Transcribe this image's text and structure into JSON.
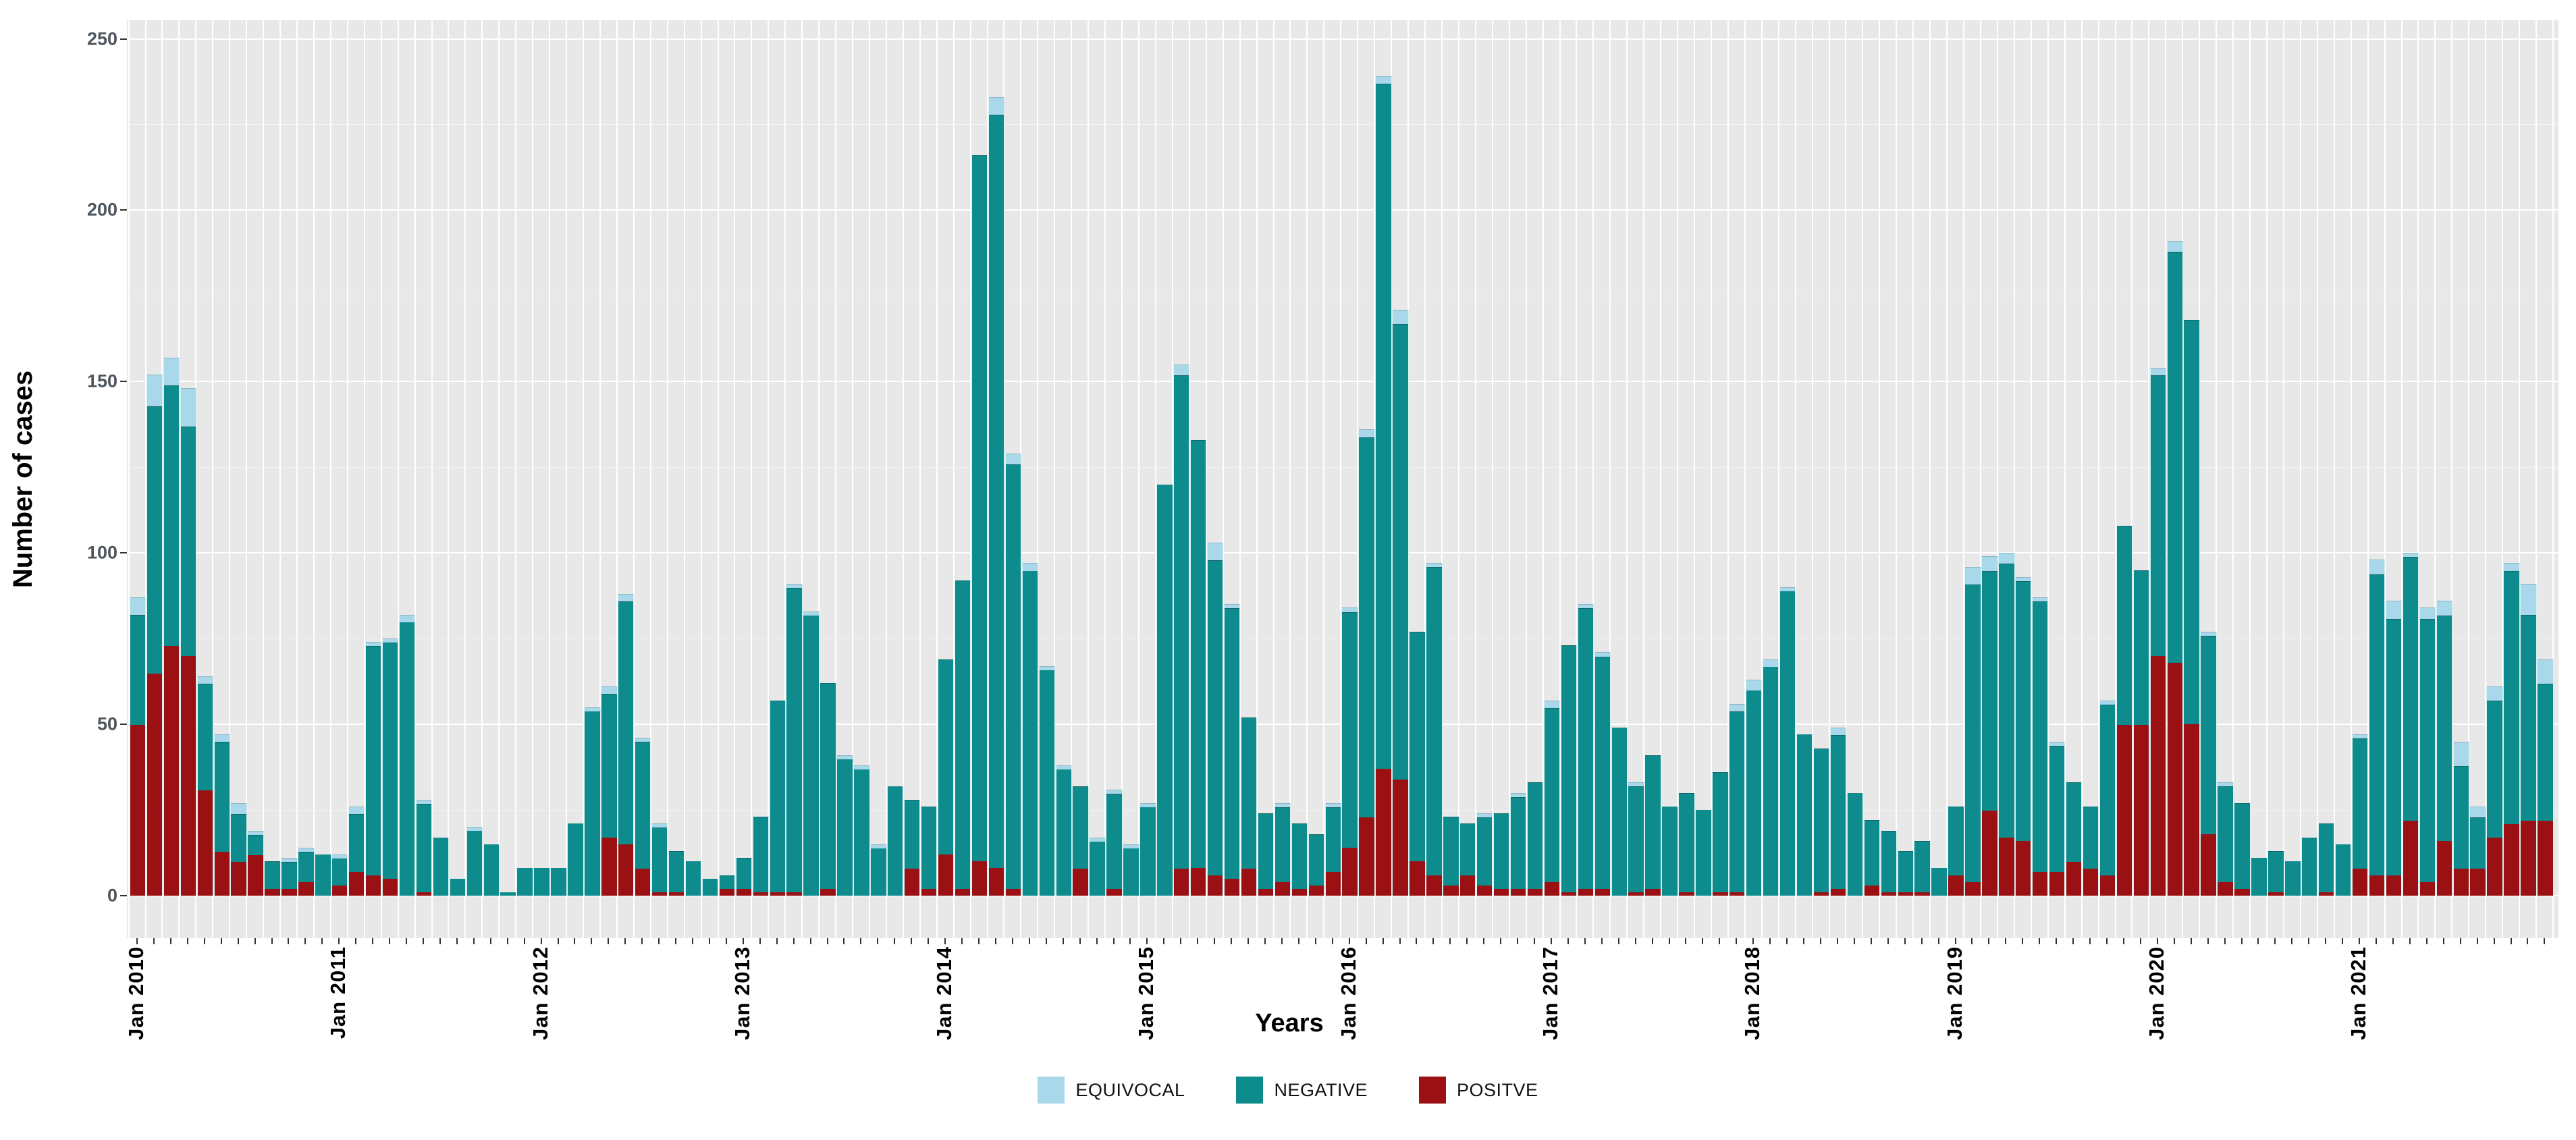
{
  "y_axis": {
    "title": "Number of cases",
    "ticks": [
      0,
      50,
      100,
      150,
      200,
      250
    ]
  },
  "x_axis": {
    "title": "Years",
    "tick_labels": [
      "Jan 2010",
      "Jan 2011",
      "Jan 2012",
      "Jan 2013",
      "Jan 2014",
      "Jan 2015",
      "Jan 2016",
      "Jan 2017",
      "Jan 2018",
      "Jan 2019",
      "Jan 2020",
      "Jan 2021"
    ]
  },
  "legend": {
    "items": [
      {
        "label": "EQUIVOCAL",
        "color": "#a9d8ea"
      },
      {
        "label": "NEGATIVE",
        "color": "#0e8c8d"
      },
      {
        "label": "POSITVE",
        "color": "#9a1013"
      }
    ]
  },
  "chart_data": {
    "type": "bar",
    "stacked": true,
    "title": "",
    "xlabel": "Years",
    "ylabel": "Number of cases",
    "ylim": [
      0,
      250
    ],
    "grid": true,
    "legend_position": "bottom",
    "panel_background": "#e8e8e8",
    "gridline_color": "#ffffff",
    "categories": [
      "Jan 2010",
      "Feb 2010",
      "Mar 2010",
      "Apr 2010",
      "May 2010",
      "Jun 2010",
      "Jul 2010",
      "Aug 2010",
      "Sep 2010",
      "Oct 2010",
      "Nov 2010",
      "Dec 2010",
      "Jan 2011",
      "Feb 2011",
      "Mar 2011",
      "Apr 2011",
      "May 2011",
      "Jun 2011",
      "Jul 2011",
      "Aug 2011",
      "Sep 2011",
      "Oct 2011",
      "Nov 2011",
      "Dec 2011",
      "Jan 2012",
      "Feb 2012",
      "Mar 2012",
      "Apr 2012",
      "May 2012",
      "Jun 2012",
      "Jul 2012",
      "Aug 2012",
      "Sep 2012",
      "Oct 2012",
      "Nov 2012",
      "Dec 2012",
      "Jan 2013",
      "Feb 2013",
      "Mar 2013",
      "Apr 2013",
      "May 2013",
      "Jun 2013",
      "Jul 2013",
      "Aug 2013",
      "Sep 2013",
      "Oct 2013",
      "Nov 2013",
      "Dec 2013",
      "Jan 2014",
      "Feb 2014",
      "Mar 2014",
      "Apr 2014",
      "May 2014",
      "Jun 2014",
      "Jul 2014",
      "Aug 2014",
      "Sep 2014",
      "Oct 2014",
      "Nov 2014",
      "Dec 2014",
      "Jan 2015",
      "Feb 2015",
      "Mar 2015",
      "Apr 2015",
      "May 2015",
      "Jun 2015",
      "Jul 2015",
      "Aug 2015",
      "Sep 2015",
      "Oct 2015",
      "Nov 2015",
      "Dec 2015",
      "Jan 2016",
      "Feb 2016",
      "Mar 2016",
      "Apr 2016",
      "May 2016",
      "Jun 2016",
      "Jul 2016",
      "Aug 2016",
      "Sep 2016",
      "Oct 2016",
      "Nov 2016",
      "Dec 2016",
      "Jan 2017",
      "Feb 2017",
      "Mar 2017",
      "Apr 2017",
      "May 2017",
      "Jun 2017",
      "Jul 2017",
      "Aug 2017",
      "Sep 2017",
      "Oct 2017",
      "Nov 2017",
      "Dec 2017",
      "Jan 2018",
      "Feb 2018",
      "Mar 2018",
      "Apr 2018",
      "May 2018",
      "Jun 2018",
      "Jul 2018",
      "Aug 2018",
      "Sep 2018",
      "Oct 2018",
      "Nov 2018",
      "Dec 2018",
      "Jan 2019",
      "Feb 2019",
      "Mar 2019",
      "Apr 2019",
      "May 2019",
      "Jun 2019",
      "Jul 2019",
      "Aug 2019",
      "Sep 2019",
      "Oct 2019",
      "Nov 2019",
      "Dec 2019",
      "Jan 2020",
      "Feb 2020",
      "Mar 2020",
      "Apr 2020",
      "May 2020",
      "Jun 2020",
      "Jul 2020",
      "Aug 2020",
      "Sep 2020",
      "Oct 2020",
      "Nov 2020",
      "Dec 2020",
      "Jan 2021",
      "Feb 2021",
      "Mar 2021",
      "Apr 2021",
      "May 2021",
      "Jun 2021",
      "Jul 2021",
      "Aug 2021",
      "Sep 2021",
      "Oct 2021",
      "Nov 2021",
      "Dec 2021"
    ],
    "series": [
      {
        "name": "POSITVE",
        "color": "#9a1013",
        "values": [
          50,
          65,
          73,
          70,
          31,
          13,
          10,
          12,
          2,
          2,
          4,
          0,
          3,
          7,
          6,
          5,
          0,
          1,
          0,
          0,
          0,
          0,
          0,
          0,
          0,
          0,
          0,
          0,
          17,
          15,
          8,
          1,
          1,
          0,
          0,
          2,
          2,
          1,
          1,
          1,
          0,
          2,
          0,
          0,
          0,
          0,
          8,
          2,
          12,
          2,
          10,
          8,
          2,
          0,
          0,
          0,
          8,
          0,
          2,
          0,
          0,
          0,
          8,
          8,
          6,
          5,
          8,
          2,
          4,
          2,
          3,
          7,
          14,
          23,
          37,
          34,
          10,
          6,
          3,
          6,
          3,
          2,
          2,
          2,
          4,
          1,
          2,
          2,
          0,
          1,
          2,
          0,
          1,
          0,
          1,
          1,
          0,
          0,
          0,
          0,
          1,
          2,
          0,
          3,
          1,
          1,
          1,
          0,
          6,
          4,
          25,
          17,
          16,
          7,
          7,
          10,
          8,
          6,
          50,
          50,
          70,
          68,
          50,
          18,
          4,
          2,
          0,
          1,
          0,
          0,
          1,
          0,
          8,
          6,
          6,
          22,
          4,
          16,
          8,
          8,
          17,
          21,
          22,
          22
        ]
      },
      {
        "name": "NEGATIVE",
        "color": "#0e8c8d",
        "values": [
          32,
          78,
          76,
          67,
          31,
          32,
          14,
          6,
          8,
          8,
          9,
          12,
          8,
          17,
          67,
          69,
          80,
          26,
          17,
          5,
          19,
          15,
          1,
          8,
          8,
          8,
          21,
          54,
          42,
          71,
          37,
          19,
          12,
          10,
          5,
          4,
          9,
          22,
          56,
          89,
          82,
          60,
          40,
          37,
          14,
          32,
          20,
          24,
          57,
          90,
          206,
          220,
          124,
          95,
          66,
          37,
          24,
          16,
          28,
          14,
          26,
          120,
          144,
          125,
          92,
          79,
          44,
          22,
          22,
          19,
          15,
          19,
          69,
          111,
          200,
          133,
          67,
          90,
          20,
          15,
          20,
          22,
          27,
          31,
          51,
          72,
          82,
          68,
          49,
          31,
          39,
          26,
          29,
          25,
          35,
          53,
          60,
          67,
          89,
          47,
          42,
          45,
          30,
          19,
          18,
          12,
          15,
          8,
          20,
          87,
          70,
          80,
          76,
          79,
          37,
          23,
          18,
          50,
          58,
          45,
          82,
          120,
          118,
          58,
          28,
          25,
          11,
          12,
          10,
          17,
          20,
          15,
          38,
          88,
          75,
          77,
          77,
          66,
          30,
          15,
          40,
          74,
          60,
          40
        ]
      },
      {
        "name": "EQUIVOCAL",
        "color": "#a9d8ea",
        "values": [
          5,
          9,
          8,
          11,
          2,
          2,
          3,
          1,
          0,
          1,
          1,
          0,
          1,
          2,
          1,
          1,
          2,
          1,
          0,
          0,
          1,
          0,
          0,
          0,
          0,
          0,
          0,
          1,
          2,
          2,
          1,
          1,
          0,
          0,
          0,
          0,
          0,
          0,
          0,
          1,
          1,
          0,
          1,
          1,
          1,
          0,
          0,
          0,
          0,
          0,
          0,
          5,
          3,
          2,
          1,
          1,
          0,
          1,
          1,
          1,
          1,
          0,
          3,
          0,
          5,
          1,
          0,
          0,
          1,
          0,
          0,
          1,
          1,
          2,
          2,
          4,
          0,
          1,
          0,
          0,
          1,
          0,
          1,
          0,
          2,
          0,
          1,
          1,
          0,
          1,
          0,
          0,
          0,
          0,
          0,
          2,
          3,
          2,
          1,
          0,
          0,
          2,
          0,
          0,
          0,
          0,
          0,
          0,
          0,
          5,
          4,
          3,
          1,
          1,
          1,
          0,
          0,
          1,
          0,
          0,
          2,
          3,
          0,
          1,
          1,
          0,
          0,
          0,
          0,
          0,
          0,
          0,
          1,
          4,
          5,
          1,
          3,
          4,
          7,
          3,
          4,
          2,
          9,
          7
        ]
      }
    ]
  }
}
